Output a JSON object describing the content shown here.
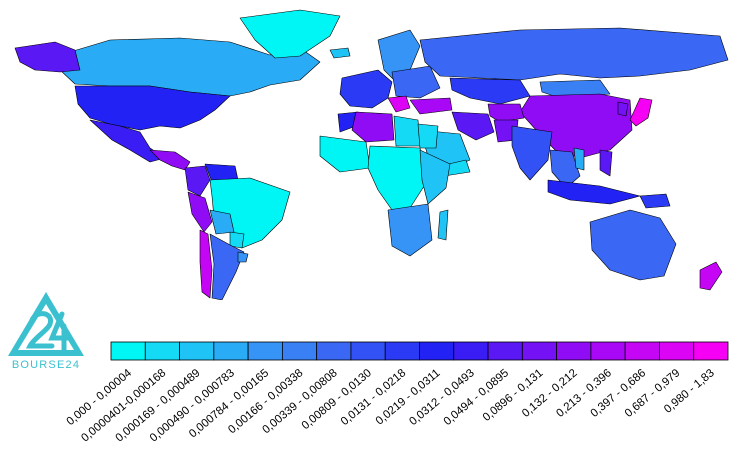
{
  "brand": {
    "name": "BOURSE24",
    "logo_mark": "24",
    "color": "#3bc0cf"
  },
  "map": {
    "background": "#ffffff",
    "border_color": "#000000",
    "regions": [
      {
        "name": "Canada",
        "bin": 3
      },
      {
        "name": "Greenland",
        "bin": 0
      },
      {
        "name": "Alaska",
        "bin": 11
      },
      {
        "name": "United States",
        "bin": 9
      },
      {
        "name": "Mexico",
        "bin": 10
      },
      {
        "name": "Central America",
        "bin": 13
      },
      {
        "name": "Colombia",
        "bin": 11
      },
      {
        "name": "Venezuela",
        "bin": 9
      },
      {
        "name": "Peru",
        "bin": 13
      },
      {
        "name": "Brazil",
        "bin": 0
      },
      {
        "name": "Bolivia",
        "bin": 3
      },
      {
        "name": "Paraguay",
        "bin": 1
      },
      {
        "name": "Chile",
        "bin": 15
      },
      {
        "name": "Argentina",
        "bin": 6
      },
      {
        "name": "Uruguay",
        "bin": 4
      },
      {
        "name": "Iceland",
        "bin": 2
      },
      {
        "name": "Scandinavia",
        "bin": 4
      },
      {
        "name": "Western Europe",
        "bin": 8
      },
      {
        "name": "Eastern Europe",
        "bin": 6
      },
      {
        "name": "Russia",
        "bin": 6
      },
      {
        "name": "Kazakhstan",
        "bin": 8
      },
      {
        "name": "Balkans",
        "bin": 16
      },
      {
        "name": "Turkey",
        "bin": 14
      },
      {
        "name": "Mongolia",
        "bin": 5
      },
      {
        "name": "China",
        "bin": 13
      },
      {
        "name": "Japan",
        "bin": 17
      },
      {
        "name": "Korea",
        "bin": 12
      },
      {
        "name": "Iran",
        "bin": 11
      },
      {
        "name": "Afghanistan",
        "bin": 13
      },
      {
        "name": "Pakistan",
        "bin": 12
      },
      {
        "name": "India",
        "bin": 7
      },
      {
        "name": "Saudi Arabia",
        "bin": 2
      },
      {
        "name": "Yemen",
        "bin": 1
      },
      {
        "name": "Morocco",
        "bin": 9
      },
      {
        "name": "Algeria",
        "bin": 13
      },
      {
        "name": "Libya",
        "bin": 1
      },
      {
        "name": "Egypt",
        "bin": 1
      },
      {
        "name": "West Africa",
        "bin": 0
      },
      {
        "name": "Central Africa",
        "bin": 0
      },
      {
        "name": "East Africa",
        "bin": 2
      },
      {
        "name": "Southern Africa",
        "bin": 4
      },
      {
        "name": "Madagascar",
        "bin": 2
      },
      {
        "name": "Southeast Asia",
        "bin": 6
      },
      {
        "name": "Vietnam",
        "bin": 3
      },
      {
        "name": "Indonesia",
        "bin": 9
      },
      {
        "name": "Philippines",
        "bin": 11
      },
      {
        "name": "Papua New Guinea",
        "bin": 8
      },
      {
        "name": "Australia",
        "bin": 6
      },
      {
        "name": "New Zealand",
        "bin": 15
      }
    ]
  },
  "legend": {
    "bins": [
      {
        "label": "0,000 - 0,00004",
        "color": "#00f5f5"
      },
      {
        "label": "0,0000401-0,000168",
        "color": "#15daf5"
      },
      {
        "label": "0,000169 - 0,000489",
        "color": "#1fc3f5"
      },
      {
        "label": "0,000490 - 0,000783",
        "color": "#2aabf5"
      },
      {
        "label": "0,000784 - 0,00165",
        "color": "#3594f5"
      },
      {
        "label": "0,00166 - 0,00338",
        "color": "#3a80f5"
      },
      {
        "label": "0,00339 - 0,00808",
        "color": "#3a68f5"
      },
      {
        "label": "0,00809 - 0,0130",
        "color": "#3352f5"
      },
      {
        "label": "0,0131 - 0,0218",
        "color": "#2a3af5"
      },
      {
        "label": "0,0219 - 0,0311",
        "color": "#2222f5"
      },
      {
        "label": "0,0312 - 0,0493",
        "color": "#3a1cf5"
      },
      {
        "label": "0,0494 - 0,0895",
        "color": "#5a18f5"
      },
      {
        "label": "0,0896 - 0,131",
        "color": "#7412f5"
      },
      {
        "label": "0,132 - 0,212",
        "color": "#900cf5"
      },
      {
        "label": "0,213 - 0,396",
        "color": "#a808f5"
      },
      {
        "label": "0,397 - 0,686",
        "color": "#c406f5"
      },
      {
        "label": "0,687 - 0,979",
        "color": "#dc04f5"
      },
      {
        "label": "0,980 - 1,83",
        "color": "#f500f5"
      }
    ]
  }
}
